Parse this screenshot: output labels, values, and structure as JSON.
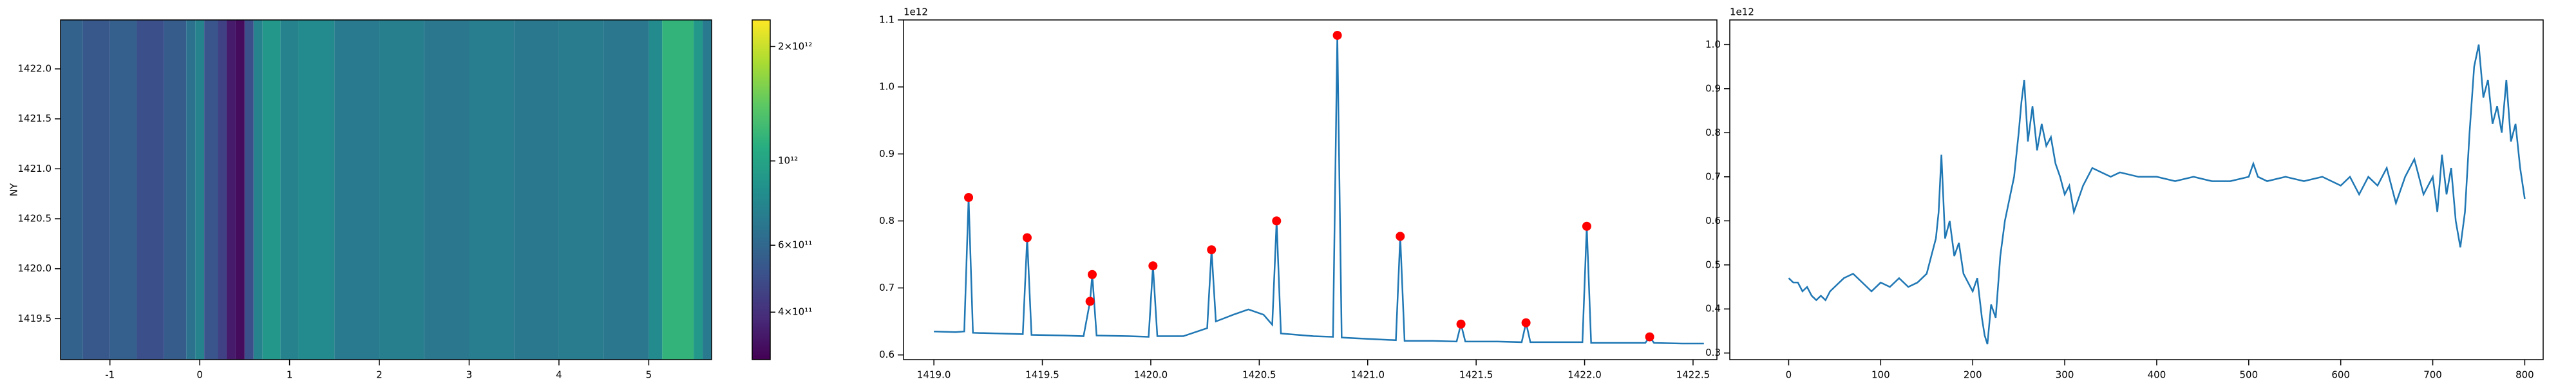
{
  "chart_data": [
    {
      "type": "heatmap",
      "ylabel": "NY",
      "x_edges": [
        -1.55,
        -1.3,
        -1.0,
        -0.7,
        -0.4,
        -0.15,
        -0.05,
        0.05,
        0.2,
        0.3,
        0.4,
        0.5,
        0.6,
        0.7,
        0.9,
        1.1,
        1.5,
        2.0,
        2.5,
        3.0,
        3.5,
        4.0,
        4.5,
        5.0,
        5.15,
        5.5,
        5.6,
        5.7
      ],
      "values": [
        580000000000.0,
        530000000000.0,
        560000000000.0,
        500000000000.0,
        550000000000.0,
        650000000000.0,
        750000000000.0,
        520000000000.0,
        450000000000.0,
        350000000000.0,
        320000000000.0,
        500000000000.0,
        750000000000.0,
        900000000000.0,
        750000000000.0,
        800000000000.0,
        700000000000.0,
        730000000000.0,
        680000000000.0,
        720000000000.0,
        690000000000.0,
        710000000000.0,
        680000000000.0,
        800000000000.0,
        1150000000000.0,
        900000000000.0,
        700000000000.0
      ],
      "xlim": [
        -1.55,
        5.7
      ],
      "xticks": [
        -1,
        0,
        1,
        2,
        3,
        4,
        5
      ],
      "ylim": [
        1419.09,
        1422.49
      ],
      "yticks": [
        1419.5,
        {
          "value": 1420,
          "label": "1420.0"
        },
        1420.5,
        {
          "value": 1421,
          "label": "1421.0"
        },
        1421.5,
        {
          "value": 1422,
          "label": "1422.0"
        }
      ],
      "colorbar": {
        "colormap": "viridis",
        "log": true,
        "clim": [
          300000000000.0,
          2350000000000.0
        ],
        "ticks": [
          {
            "value": 2000000000000.0,
            "label": "2×10¹²"
          },
          {
            "value": 1000000000000.0,
            "label": "10¹²"
          },
          {
            "value": 600000000000.0,
            "label": "6×10¹¹"
          },
          {
            "value": 400000000000.0,
            "label": "4×10¹¹"
          }
        ]
      }
    },
    {
      "type": "line",
      "y_offset_label": "1e12",
      "xlim": [
        1418.86,
        1422.61
      ],
      "xticks": [
        {
          "value": 1419,
          "label": "1419.0"
        },
        1419.5,
        {
          "value": 1420,
          "label": "1420.0"
        },
        1420.5,
        {
          "value": 1421,
          "label": "1421.0"
        },
        1421.5,
        {
          "value": 1422,
          "label": "1422.0"
        },
        1422.5
      ],
      "ylim": [
        0.593,
        1.1
      ],
      "yticks": [
        0.6,
        0.7,
        0.8,
        0.9,
        {
          "value": 1.0,
          "label": "1.0"
        },
        1.1
      ],
      "series": [
        {
          "kind": "line",
          "color": "#1f77b4",
          "x": [
            1419.0,
            1419.1,
            1419.14,
            1419.16,
            1419.18,
            1419.3,
            1419.41,
            1419.43,
            1419.45,
            1419.6,
            1419.69,
            1419.72,
            1419.73,
            1419.75,
            1419.9,
            1419.99,
            1420.01,
            1420.03,
            1420.15,
            1420.26,
            1420.28,
            1420.3,
            1420.38,
            1420.45,
            1420.52,
            1420.56,
            1420.58,
            1420.6,
            1420.75,
            1420.84,
            1420.86,
            1420.88,
            1421.0,
            1421.13,
            1421.15,
            1421.17,
            1421.3,
            1421.41,
            1421.43,
            1421.45,
            1421.6,
            1421.71,
            1421.73,
            1421.75,
            1421.9,
            1421.99,
            1422.01,
            1422.03,
            1422.15,
            1422.28,
            1422.3,
            1422.32,
            1422.45,
            1422.55
          ],
          "values": [
            0.635,
            0.634,
            0.635,
            0.835,
            0.633,
            0.632,
            0.631,
            0.775,
            0.63,
            0.629,
            0.628,
            0.68,
            0.72,
            0.629,
            0.628,
            0.627,
            0.733,
            0.628,
            0.628,
            0.64,
            0.757,
            0.65,
            0.66,
            0.668,
            0.66,
            0.645,
            0.8,
            0.632,
            0.628,
            0.627,
            1.077,
            0.626,
            0.624,
            0.622,
            0.777,
            0.621,
            0.621,
            0.62,
            0.646,
            0.62,
            0.62,
            0.619,
            0.648,
            0.619,
            0.619,
            0.619,
            0.792,
            0.618,
            0.618,
            0.618,
            0.627,
            0.618,
            0.617,
            0.617
          ]
        },
        {
          "kind": "scatter",
          "color": "#ff0000",
          "x": [
            1419.16,
            1419.43,
            1419.72,
            1419.73,
            1420.01,
            1420.28,
            1420.58,
            1420.86,
            1421.15,
            1421.43,
            1421.73,
            1422.01,
            1422.3
          ],
          "values": [
            0.835,
            0.775,
            0.68,
            0.72,
            0.733,
            0.757,
            0.8,
            1.077,
            0.777,
            0.646,
            0.648,
            0.792,
            0.627
          ]
        }
      ]
    },
    {
      "type": "line",
      "y_offset_label": "1e12",
      "xlim": [
        -64,
        820
      ],
      "xticks": [
        0,
        100,
        200,
        300,
        400,
        500,
        600,
        700,
        800
      ],
      "ylim": [
        0.285,
        1.056
      ],
      "yticks": [
        0.3,
        0.4,
        0.5,
        0.6,
        0.7,
        0.8,
        0.9,
        {
          "value": 1.0,
          "label": "1.0"
        }
      ],
      "series": [
        {
          "kind": "line",
          "color": "#1f77b4",
          "x": [
            0,
            5,
            10,
            15,
            20,
            25,
            30,
            35,
            40,
            45,
            50,
            60,
            70,
            80,
            90,
            100,
            110,
            120,
            130,
            140,
            150,
            155,
            160,
            163,
            166,
            170,
            175,
            180,
            185,
            190,
            195,
            200,
            205,
            210,
            213,
            216,
            220,
            225,
            230,
            235,
            240,
            245,
            250,
            253,
            256,
            260,
            265,
            270,
            275,
            280,
            285,
            290,
            295,
            300,
            305,
            310,
            320,
            330,
            340,
            350,
            360,
            380,
            400,
            420,
            440,
            460,
            480,
            500,
            505,
            510,
            520,
            540,
            560,
            580,
            600,
            610,
            620,
            630,
            640,
            650,
            660,
            670,
            680,
            690,
            700,
            705,
            710,
            715,
            720,
            725,
            730,
            735,
            740,
            745,
            750,
            755,
            760,
            765,
            770,
            775,
            780,
            785,
            790,
            795,
            800
          ],
          "values": [
            0.47,
            0.46,
            0.46,
            0.44,
            0.45,
            0.43,
            0.42,
            0.43,
            0.42,
            0.44,
            0.45,
            0.47,
            0.48,
            0.46,
            0.44,
            0.46,
            0.45,
            0.47,
            0.45,
            0.46,
            0.48,
            0.52,
            0.56,
            0.62,
            0.75,
            0.56,
            0.6,
            0.52,
            0.55,
            0.48,
            0.46,
            0.44,
            0.47,
            0.38,
            0.34,
            0.32,
            0.41,
            0.38,
            0.52,
            0.6,
            0.65,
            0.7,
            0.8,
            0.87,
            0.92,
            0.78,
            0.86,
            0.76,
            0.82,
            0.77,
            0.79,
            0.73,
            0.7,
            0.66,
            0.68,
            0.62,
            0.68,
            0.72,
            0.71,
            0.7,
            0.71,
            0.7,
            0.7,
            0.69,
            0.7,
            0.69,
            0.69,
            0.7,
            0.73,
            0.7,
            0.69,
            0.7,
            0.69,
            0.7,
            0.68,
            0.7,
            0.66,
            0.7,
            0.68,
            0.72,
            0.64,
            0.7,
            0.74,
            0.66,
            0.7,
            0.62,
            0.75,
            0.66,
            0.72,
            0.6,
            0.54,
            0.62,
            0.8,
            0.95,
            1.0,
            0.88,
            0.92,
            0.82,
            0.86,
            0.8,
            0.92,
            0.78,
            0.82,
            0.72,
            0.65
          ]
        }
      ]
    }
  ]
}
